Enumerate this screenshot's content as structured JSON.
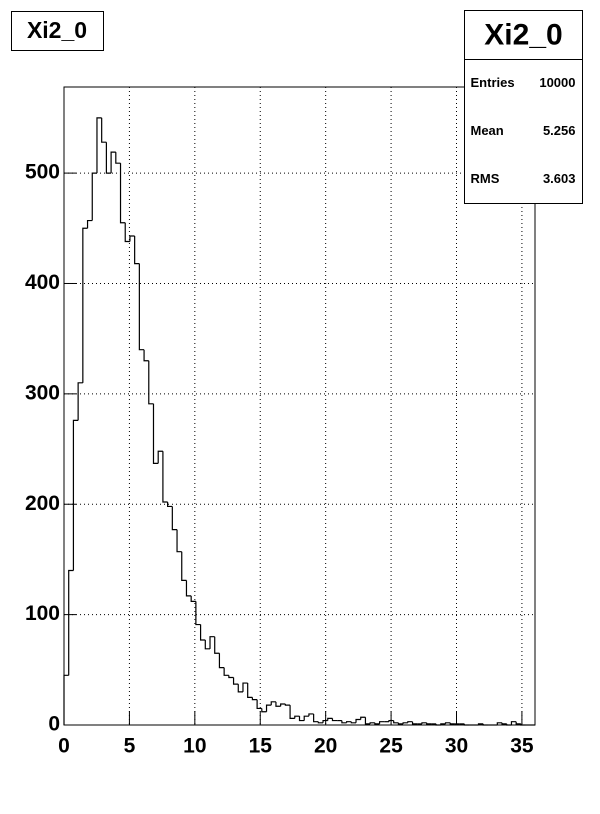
{
  "chart_data": {
    "type": "histogram",
    "title": "Xi2_0",
    "stats": {
      "title": "Xi2_0",
      "rows": [
        {
          "label": "Entries",
          "value": 10000
        },
        {
          "label": "Mean",
          "value": 5.256
        },
        {
          "label": "RMS",
          "value": 3.603
        }
      ]
    },
    "bins": [
      0,
      0.36,
      0.72,
      1.08,
      1.44,
      1.8,
      2.16,
      2.52,
      2.88,
      3.24,
      3.6,
      3.96,
      4.32,
      4.68,
      5.04,
      5.4,
      5.76,
      6.12,
      6.48,
      6.84,
      7.2,
      7.56,
      7.92,
      8.28,
      8.64,
      9,
      9.36,
      9.72,
      10.08,
      10.44,
      10.8,
      11.16,
      11.52,
      11.88,
      12.24,
      12.6,
      12.96,
      13.32,
      13.68,
      14.04,
      14.4,
      14.76,
      15.12,
      15.48,
      15.84,
      16.2,
      16.56,
      16.92,
      17.28,
      17.64,
      18,
      18.36,
      18.72,
      19.08,
      19.44,
      19.8,
      20.16,
      20.52,
      20.88,
      21.24,
      21.6,
      21.96,
      22.32,
      22.68,
      23.04,
      23.4,
      23.76,
      24.12,
      24.48,
      24.84,
      25.2,
      25.56,
      25.92,
      26.28,
      26.64,
      27,
      27.36,
      27.72,
      28.08,
      28.44,
      28.8,
      29.16,
      29.52,
      29.88,
      30.24,
      30.6,
      30.96,
      31.32,
      31.68,
      32.04,
      32.4,
      32.76,
      33.12,
      33.48,
      33.84,
      34.2,
      34.56,
      34.92,
      35.28,
      35.64,
      36
    ],
    "values": [
      45,
      140,
      276,
      310,
      450,
      457,
      500,
      550,
      528,
      500,
      519,
      509,
      455,
      438,
      443,
      418,
      340,
      330,
      291,
      237,
      248,
      202,
      198,
      177,
      157,
      131,
      117,
      112,
      91,
      77,
      69,
      80,
      65,
      52,
      45,
      43,
      37,
      30,
      38,
      25,
      23,
      15,
      12,
      18,
      21,
      17,
      19,
      18,
      6,
      8,
      4,
      8,
      10,
      3,
      2,
      4,
      6,
      4,
      4,
      2,
      3,
      2,
      5,
      7,
      1,
      2,
      1,
      3,
      3,
      4,
      2,
      1,
      2,
      3,
      1,
      1,
      2,
      1,
      1,
      0,
      1,
      2,
      1,
      1,
      1,
      0,
      0,
      0,
      1,
      0,
      0,
      0,
      2,
      1,
      0,
      3,
      1,
      0,
      0,
      0
    ],
    "color": "#000000",
    "xlim": [
      0,
      36
    ],
    "xticks": [
      0,
      5,
      10,
      15,
      20,
      25,
      30,
      35
    ],
    "ylim": [
      0,
      578
    ],
    "yticks": [
      0,
      100,
      200,
      300,
      400,
      500
    ],
    "grid": true
  }
}
